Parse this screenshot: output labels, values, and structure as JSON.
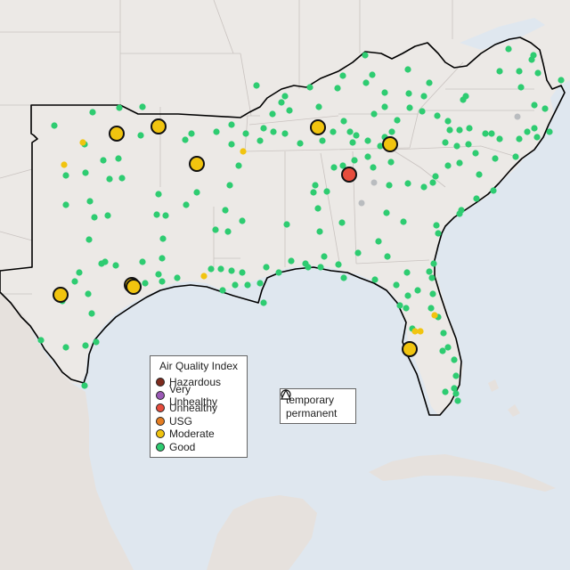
{
  "map": {
    "colors": {
      "ocean": "#dfe7ef",
      "land": "#ece9e6",
      "land_shade": "#e2dedb",
      "border": "#c9c3c0",
      "region_outline": "#000000",
      "marker_stroke": "#111111"
    }
  },
  "legend": {
    "title": "Air Quality Index",
    "categories": [
      {
        "label": "Hazardous",
        "color": "#7e2b1e"
      },
      {
        "label": "Very Unhealthy",
        "color": "#9b59b6"
      },
      {
        "label": "Unhealthy",
        "color": "#e74c3c"
      },
      {
        "label": "USG",
        "color": "#e67e22"
      },
      {
        "label": "Moderate",
        "color": "#f1c40f"
      },
      {
        "label": "Good",
        "color": "#2ecc71"
      }
    ]
  },
  "type_legend": {
    "items": [
      {
        "label": "temporary",
        "symbol": "circle"
      },
      {
        "label": "permanent",
        "symbol": "triangle"
      }
    ]
  }
}
